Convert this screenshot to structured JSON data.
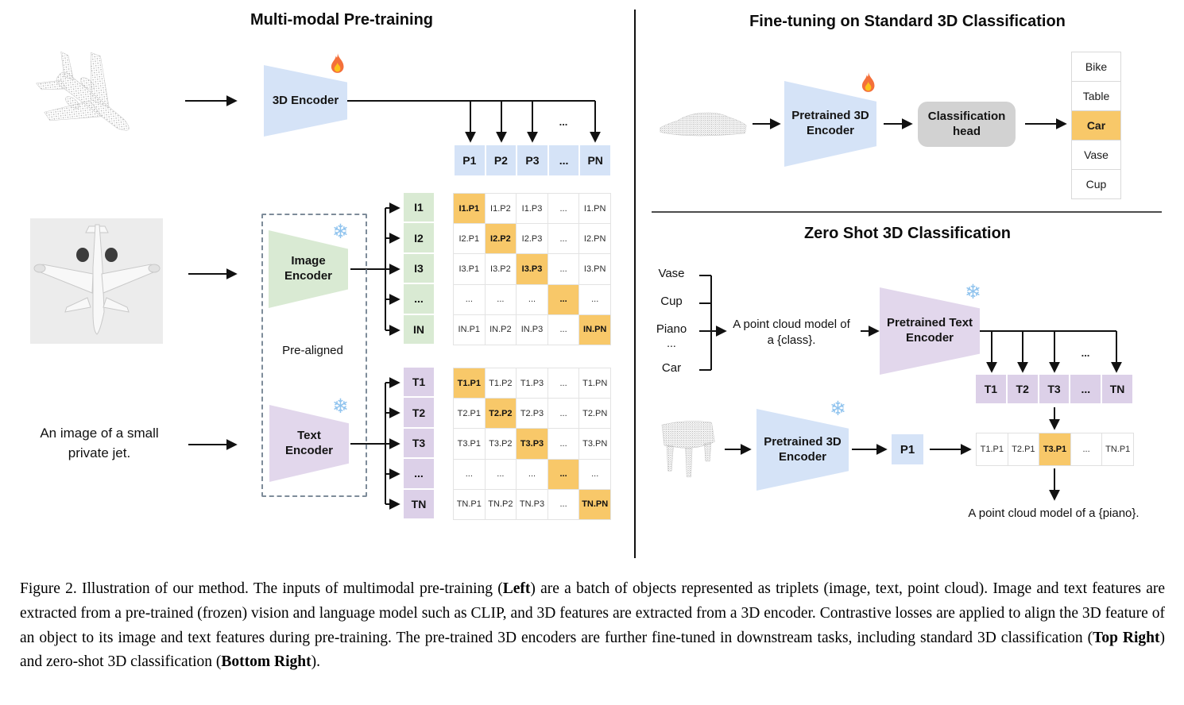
{
  "left": {
    "title": "Multi-modal Pre-training",
    "encoder_3d_label": "3D Encoder",
    "p_row": [
      "P1",
      "P2",
      "P3",
      "...",
      "PN"
    ],
    "image_encoder_label": "Image\nEncoder",
    "text_encoder_label": "Text\nEncoder",
    "pre_aligned_label": "Pre-aligned",
    "text_input": "An image of a small\nprivate jet.",
    "ellipsis": "...",
    "i_labels": [
      "I1",
      "I2",
      "I3",
      "...",
      "IN"
    ],
    "t_labels": [
      "T1",
      "T2",
      "T3",
      "...",
      "TN"
    ],
    "image_matrix": {
      "highlight": "diagonal",
      "rows": [
        [
          "I1.P1",
          "I1.P2",
          "I1.P3",
          "...",
          "I1.PN"
        ],
        [
          "I2.P1",
          "I2.P2",
          "I2.P3",
          "...",
          "I2.PN"
        ],
        [
          "I3.P1",
          "I3.P2",
          "I3.P3",
          "...",
          "I3.PN"
        ],
        [
          "...",
          "...",
          "...",
          "...",
          "..."
        ],
        [
          "IN.P1",
          "IN.P2",
          "IN.P3",
          "...",
          "IN.PN"
        ]
      ]
    },
    "text_matrix": {
      "highlight": "diagonal",
      "rows": [
        [
          "T1.P1",
          "T1.P2",
          "T1.P3",
          "...",
          "T1.PN"
        ],
        [
          "T2.P1",
          "T2.P2",
          "T2.P3",
          "...",
          "T2.PN"
        ],
        [
          "T3.P1",
          "T3.P2",
          "T3.P3",
          "...",
          "T3.PN"
        ],
        [
          "...",
          "...",
          "...",
          "...",
          "..."
        ],
        [
          "TN.P1",
          "TN.P2",
          "TN.P3",
          "...",
          "TN.PN"
        ]
      ]
    }
  },
  "top_right": {
    "title": "Fine-tuning on Standard 3D Classification",
    "encoder_label": "Pretrained 3D\nEncoder",
    "head_label": "Classification\nhead",
    "classes": [
      "Bike",
      "Table",
      "Car",
      "Vase",
      "Cup"
    ],
    "predicted_index": 2
  },
  "bottom_right": {
    "title": "Zero Shot 3D Classification",
    "classes": [
      "Vase",
      "Cup",
      "Piano",
      "...",
      "Car"
    ],
    "prompt": "A point cloud model of\na {class}.",
    "text_encoder_label": "Pretrained Text\nEncoder",
    "t_row": [
      "T1",
      "T2",
      "T3",
      "...",
      "TN"
    ],
    "encoder_label": "Pretrained 3D\nEncoder",
    "p_feature": "P1",
    "result_row": [
      "T1.P1",
      "T2.P1",
      "T3.P1",
      "...",
      "TN.P1"
    ],
    "match_index": 2,
    "result_caption": "A point cloud model of a {piano}.",
    "ellipsis": "..."
  },
  "caption": {
    "segments": [
      {
        "text": "Figure 2. Illustration of our method. The inputs of multimodal pre-training (",
        "bold": false
      },
      {
        "text": "Left",
        "bold": true
      },
      {
        "text": ") are a batch of objects represented as triplets (image, text, point cloud). Image and text features are extracted from a pre-trained (frozen) vision and language model such as CLIP, and 3D features are extracted from a 3D encoder. Contrastive losses are applied to align the 3D feature of an object to its image and text features during pre-training. The pre-trained 3D encoders are further fine-tuned in downstream tasks, including standard 3D classification (",
        "bold": false
      },
      {
        "text": "Top Right",
        "bold": true
      },
      {
        "text": ") and zero-shot 3D classification (",
        "bold": false
      },
      {
        "text": "Bottom Right",
        "bold": true
      },
      {
        "text": ").",
        "bold": false
      }
    ]
  },
  "colors": {
    "blue": "#d5e3f7",
    "green": "#d9ead3",
    "purple": "#e2d7ec",
    "purple_cell": "#dcd0e8",
    "amber": "#f8c869",
    "gray_head": "#d2d2d2"
  }
}
